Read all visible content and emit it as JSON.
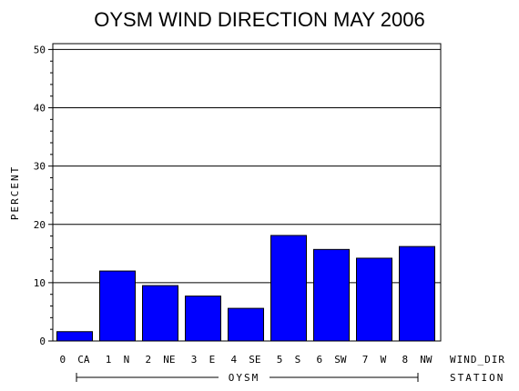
{
  "chart_data": {
    "type": "bar",
    "title": "OYSM WIND DIRECTION MAY 2006",
    "ylabel": "PERCENT",
    "xlabel": "WIND_DIR",
    "group_label": "OYSM",
    "group_axis_label": "STATION",
    "categories": [
      "0 CA",
      "1 N",
      "2 NE",
      "3 E",
      "4 SE",
      "5 S",
      "6 SW",
      "7 W",
      "8 NW"
    ],
    "values": [
      1.6,
      12.0,
      9.5,
      7.7,
      5.6,
      18.1,
      15.7,
      14.2,
      16.2
    ],
    "ylim": [
      0,
      51
    ],
    "yticks": [
      0,
      10,
      20,
      30,
      40,
      50
    ],
    "grid": true,
    "bar_color": "#0000ff",
    "legend": "none"
  }
}
